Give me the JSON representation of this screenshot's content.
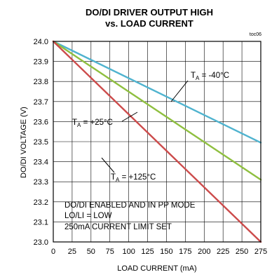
{
  "chart_data": {
    "type": "line",
    "title_line1": "DO/DI DRIVER OUTPUT HIGH",
    "title_line2": "vs. LOAD CURRENT",
    "code": "toc06",
    "xlabel": "LOAD CURRENT  (mA)",
    "ylabel": "DO/DI VOLTAGE (V)",
    "xlim": [
      0,
      275
    ],
    "ylim": [
      23.0,
      24.0
    ],
    "xticks": [
      0,
      25,
      50,
      75,
      100,
      125,
      150,
      175,
      200,
      225,
      250,
      275
    ],
    "yticks": [
      "23.0",
      "23.1",
      "23.2",
      "23.3",
      "23.4",
      "23.5",
      "23.6",
      "23.7",
      "23.8",
      "23.9",
      "24.0"
    ],
    "grid": true,
    "series": [
      {
        "name": "TA = -40°C",
        "label_main": "T",
        "label_sub": "A",
        "label_rest": " = -40°C",
        "color": "#4fb3cf",
        "x": [
          0,
          275
        ],
        "y": [
          24.0,
          23.495
        ]
      },
      {
        "name": "TA = +25°C",
        "label_main": "T",
        "label_sub": "A",
        "label_rest": " = +25°C",
        "color": "#8fbf3f",
        "x": [
          0,
          275
        ],
        "y": [
          24.0,
          23.31
        ]
      },
      {
        "name": "TA = +125°C",
        "label_main": "T",
        "label_sub": "A",
        "label_rest": " = +125°C",
        "color": "#cc4b4b",
        "x": [
          0,
          275
        ],
        "y": [
          24.0,
          23.0
        ]
      }
    ],
    "notes": [
      "DO/DI ENABLED AND IN PP MODE",
      "LO/LI = LOW",
      "250mA CURRENT LIMIT SET"
    ]
  }
}
